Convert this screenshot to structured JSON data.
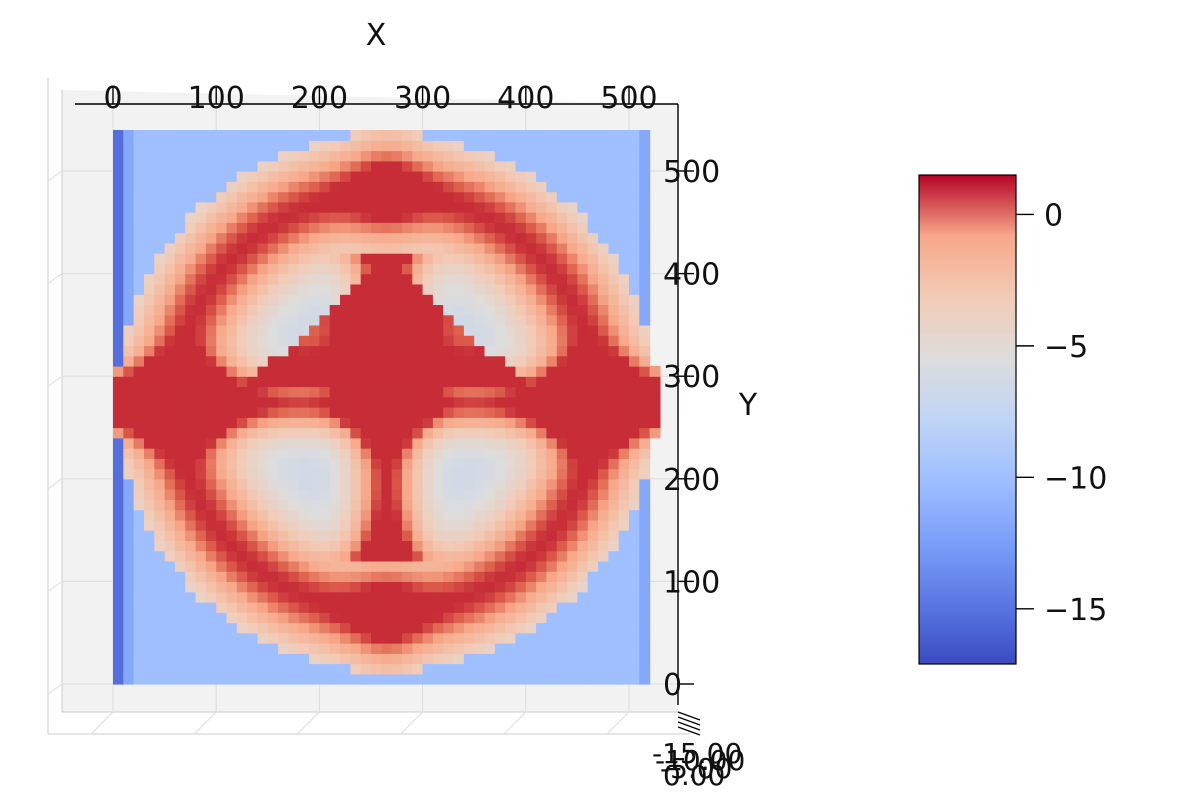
{
  "chart_data": {
    "type": "heatmap",
    "subtype": "3d-surface-top-view",
    "xlabel": "X",
    "ylabel": "Y",
    "zlabel": "",
    "xticks": [
      0,
      100,
      200,
      300,
      400,
      500
    ],
    "yticks": [
      0,
      100,
      200,
      300,
      400,
      500
    ],
    "z_tick_labels": [
      "-15.00",
      "-10.00",
      "-5.00",
      "0.00"
    ],
    "xlim": [
      0,
      530
    ],
    "ylim": [
      0,
      550
    ],
    "colormap": "coolwarm",
    "colorbar": {
      "ticks": [
        0,
        -5,
        -10,
        -15
      ],
      "tick_labels": [
        "0",
        "−5",
        "−10",
        "−15"
      ],
      "range": [
        -17.1,
        1.5
      ]
    },
    "grid": true,
    "surface_description_values": {
      "outer_ring_value": 1,
      "cross_bars_value": 1,
      "inner_lobes_value": -7,
      "corners_value": -10,
      "edge_columns_min": -17
    },
    "colors": {
      "high": "#b40426",
      "mid": "#dddddd",
      "low": "#3b4cc0",
      "pane": "#f2f2f2",
      "grid": "#dcdcdc"
    }
  }
}
